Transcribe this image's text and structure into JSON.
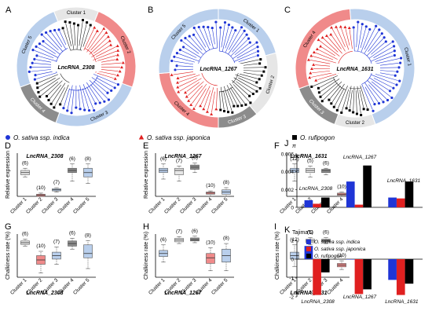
{
  "figure": {
    "trees": [
      {
        "letter": "A",
        "gene": "LncRNA_2308",
        "clusters": [
          {
            "label": "Cluster 1",
            "color": "#e6e6e6",
            "span": [
              -22,
              22
            ]
          },
          {
            "label": "Cluster 2",
            "color": "#f08a8a",
            "span": [
              22,
              110
            ]
          },
          {
            "label": "Cluster 3",
            "color": "#b9cfec",
            "span": [
              110,
              200
            ]
          },
          {
            "label": "Cluster 4",
            "color": "#8c8c8c",
            "span": [
              200,
              250
            ]
          },
          {
            "label": "Cluster 5",
            "color": "#b9cfec",
            "span": [
              250,
              338
            ]
          }
        ]
      },
      {
        "letter": "B",
        "gene": "LncRNA_1267",
        "clusters": [
          {
            "label": "Cluster 1",
            "color": "#b9cfec",
            "span": [
              0,
              75
            ]
          },
          {
            "label": "Cluster 2",
            "color": "#e6e6e6",
            "span": [
              75,
              140
            ]
          },
          {
            "label": "Cluster 3",
            "color": "#8c8c8c",
            "span": [
              140,
              180
            ]
          },
          {
            "label": "Cluster 4",
            "color": "#f08a8a",
            "span": [
              180,
              265
            ]
          },
          {
            "label": "Cluster 5",
            "color": "#b9cfec",
            "span": [
              265,
              360
            ]
          }
        ]
      },
      {
        "letter": "C",
        "gene": "LncRNA_1631",
        "clusters": [
          {
            "label": "Cluster 1",
            "color": "#b9cfec",
            "span": [
              -5,
              160
            ]
          },
          {
            "label": "Cluster 2",
            "color": "#e6e6e6",
            "span": [
              160,
              200
            ]
          },
          {
            "label": "Cluster 3",
            "color": "#8c8c8c",
            "span": [
              200,
              250
            ]
          },
          {
            "label": "Cluster 4",
            "color": "#f08a8a",
            "span": [
              250,
              355
            ]
          }
        ]
      }
    ],
    "legend": [
      {
        "label": "O. sativa ssp. indica",
        "color": "#1f35d6",
        "shape": "circle"
      },
      {
        "label": "O. sativa ssp. japonica",
        "color": "#e02020",
        "shape": "triangle"
      },
      {
        "label": "O. rufipogon",
        "color": "#000000",
        "shape": "square"
      }
    ],
    "palette": {
      "c1": "#e6e6e6",
      "c2": "#f08a8a",
      "c3": "#b9cfec",
      "c4": "#8c8c8c",
      "indica": "#1f35d6",
      "japonica": "#e02020",
      "rufipogon": "#000000"
    }
  },
  "chart_data": [
    {
      "panel": "D",
      "type": "box",
      "title": "LncRNA_2308",
      "ylabel": "Relative expression",
      "categories": [
        "Cluster 1",
        "Cluster 2",
        "Cluster 3",
        "Cluster 4",
        "Cluster 5"
      ],
      "n": [
        "(6)",
        "(10)",
        "(7)",
        "(6)",
        "(8)"
      ],
      "ylim": [
        0,
        0.2
      ],
      "boxes": [
        [
          0.09,
          0.1,
          0.11,
          0.12,
          0.13
        ],
        [
          0.0,
          0.0,
          0.005,
          0.01,
          0.015
        ],
        [
          0.02,
          0.025,
          0.03,
          0.035,
          0.04
        ],
        [
          0.07,
          0.11,
          0.12,
          0.13,
          0.15
        ],
        [
          0.06,
          0.09,
          0.11,
          0.13,
          0.15
        ]
      ],
      "colors": [
        "#e6e6e6",
        "#f08a8a",
        "#b9cfec",
        "#8c8c8c",
        "#b9cfec"
      ]
    },
    {
      "panel": "E",
      "type": "box",
      "title": "LncRNA_1267",
      "ylabel": "Relative expression",
      "categories": [
        "Cluster 1",
        "Cluster 2",
        "Cluster 3",
        "Cluster 4",
        "Cluster 5"
      ],
      "n": [
        "(6)",
        "(7)",
        "(6)",
        "(10)",
        "(8)"
      ],
      "ylim": [
        0,
        0.2
      ],
      "boxes": [
        [
          0.08,
          0.11,
          0.12,
          0.13,
          0.15
        ],
        [
          0.07,
          0.1,
          0.12,
          0.13,
          0.14
        ],
        [
          0.11,
          0.125,
          0.135,
          0.145,
          0.155
        ],
        [
          0.0,
          0.01,
          0.015,
          0.02,
          0.025
        ],
        [
          0.0,
          0.01,
          0.02,
          0.03,
          0.04
        ]
      ],
      "colors": [
        "#b9cfec",
        "#e6e6e6",
        "#8c8c8c",
        "#f08a8a",
        "#b9cfec"
      ]
    },
    {
      "panel": "F",
      "type": "box",
      "title": "LncRNA_1631",
      "ylabel": "",
      "categories": [
        "Cluster 1",
        "Cluster 2",
        "Cluster 3",
        "Cluster 4"
      ],
      "n": [
        "(12)",
        "(5)",
        "(6)",
        "(10)"
      ],
      "ylim": [
        0,
        0.2
      ],
      "boxes": [
        [
          0.07,
          0.11,
          0.12,
          0.13,
          0.15
        ],
        [
          0.09,
          0.11,
          0.12,
          0.13,
          0.14
        ],
        [
          0.1,
          0.11,
          0.12,
          0.125,
          0.13
        ],
        [
          0.0,
          0.005,
          0.01,
          0.015,
          0.02
        ]
      ],
      "colors": [
        "#b9cfec",
        "#e6e6e6",
        "#8c8c8c",
        "#f08a8a"
      ]
    },
    {
      "panel": "G",
      "type": "box",
      "title": "LncRNA_2308",
      "ylabel": "Chalkiness rate (%)",
      "categories": [
        "Cluster 1",
        "Cluster 2",
        "Cluster 3",
        "Cluster 4",
        "Cluster 5"
      ],
      "n": [
        "(6)",
        "(10)",
        "(7)",
        "(6)",
        "(8)"
      ],
      "ylim": [
        0,
        1
      ],
      "boxes": [
        [
          0.72,
          0.76,
          0.8,
          0.84,
          0.88
        ],
        [
          0.1,
          0.3,
          0.4,
          0.5,
          0.6
        ],
        [
          0.3,
          0.42,
          0.5,
          0.58,
          0.7
        ],
        [
          0.65,
          0.72,
          0.78,
          0.84,
          0.9
        ],
        [
          0.2,
          0.45,
          0.55,
          0.75,
          0.85
        ]
      ],
      "colors": [
        "#e6e6e6",
        "#f08a8a",
        "#b9cfec",
        "#8c8c8c",
        "#b9cfec"
      ]
    },
    {
      "panel": "H",
      "type": "box",
      "title": "LncRNA_1267",
      "ylabel": "Chalkiness rate (%)",
      "categories": [
        "Cluster 1",
        "Cluster 2",
        "Cluster 3",
        "Cluster 4",
        "Cluster 5"
      ],
      "n": [
        "(6)",
        "(7)",
        "(6)",
        "(10)",
        "(8)"
      ],
      "ylim": [
        0,
        1
      ],
      "boxes": [
        [
          0.35,
          0.48,
          0.55,
          0.62,
          0.75
        ],
        [
          0.78,
          0.82,
          0.86,
          0.9,
          0.94
        ],
        [
          0.8,
          0.84,
          0.87,
          0.91,
          0.95
        ],
        [
          0.15,
          0.32,
          0.45,
          0.55,
          0.68
        ],
        [
          0.15,
          0.35,
          0.5,
          0.65,
          0.78
        ]
      ],
      "colors": [
        "#b9cfec",
        "#e6e6e6",
        "#8c8c8c",
        "#f08a8a",
        "#b9cfec"
      ]
    },
    {
      "panel": "I",
      "type": "box",
      "title": "LncRNA_1631",
      "ylabel": "Chalkiness rate (%)",
      "categories": [
        "Cluster 1",
        "Cluster 2",
        "Cluster 3",
        "Cluster 4"
      ],
      "n": [
        "(12)",
        "(5)",
        "(6)",
        "(10)"
      ],
      "ylim": [
        0,
        1
      ],
      "boxes": [
        [
          0.25,
          0.42,
          0.5,
          0.58,
          0.75
        ],
        [
          0.75,
          0.8,
          0.84,
          0.88,
          0.92
        ],
        [
          0.78,
          0.82,
          0.85,
          0.88,
          0.92
        ],
        [
          0.18,
          0.24,
          0.28,
          0.32,
          0.38
        ]
      ],
      "colors": [
        "#b9cfec",
        "#e6e6e6",
        "#8c8c8c",
        "#f08a8a"
      ]
    },
    {
      "panel": "J",
      "type": "bar",
      "ylabel": "π",
      "categories": [
        "LncRNA_2308",
        "LncRNA_1267",
        "LncRNA_1631"
      ],
      "series": [
        {
          "name": "O. sativa ssp. indica",
          "color": "#1f35d6",
          "values": [
            0.0008,
            0.0029,
            0.0011
          ]
        },
        {
          "name": "O. sativa ssp. japonica",
          "color": "#e02020",
          "values": [
            0.0004,
            0.0003,
            0.001
          ]
        },
        {
          "name": "O. rufipogon",
          "color": "#000000",
          "values": [
            0.0011,
            0.0047,
            0.0029
          ]
        }
      ],
      "ylim": [
        0,
        0.006
      ],
      "yticks": [
        "0",
        "0.002",
        "0.004",
        "0.006"
      ]
    },
    {
      "panel": "K",
      "type": "bar",
      "ylabel": "Tajima'D",
      "categories": [
        "LncRNA_2308",
        "LncRNA_1267",
        "LncRNA_1631"
      ],
      "series": [
        {
          "name": "O. sativa ssp. indica",
          "color": "#1f35d6",
          "values": [
            0.7,
            0.0,
            -1.1
          ]
        },
        {
          "name": "O. sativa ssp. japonica",
          "color": "#e02020",
          "values": [
            -1.9,
            -1.85,
            -1.9
          ]
        },
        {
          "name": "O. rufipogon",
          "color": "#000000",
          "values": [
            -0.7,
            -1.6,
            -1.3
          ]
        }
      ],
      "ylim": [
        -2,
        1
      ],
      "yticks": [
        "1",
        "0",
        "-1",
        "-2"
      ]
    }
  ]
}
